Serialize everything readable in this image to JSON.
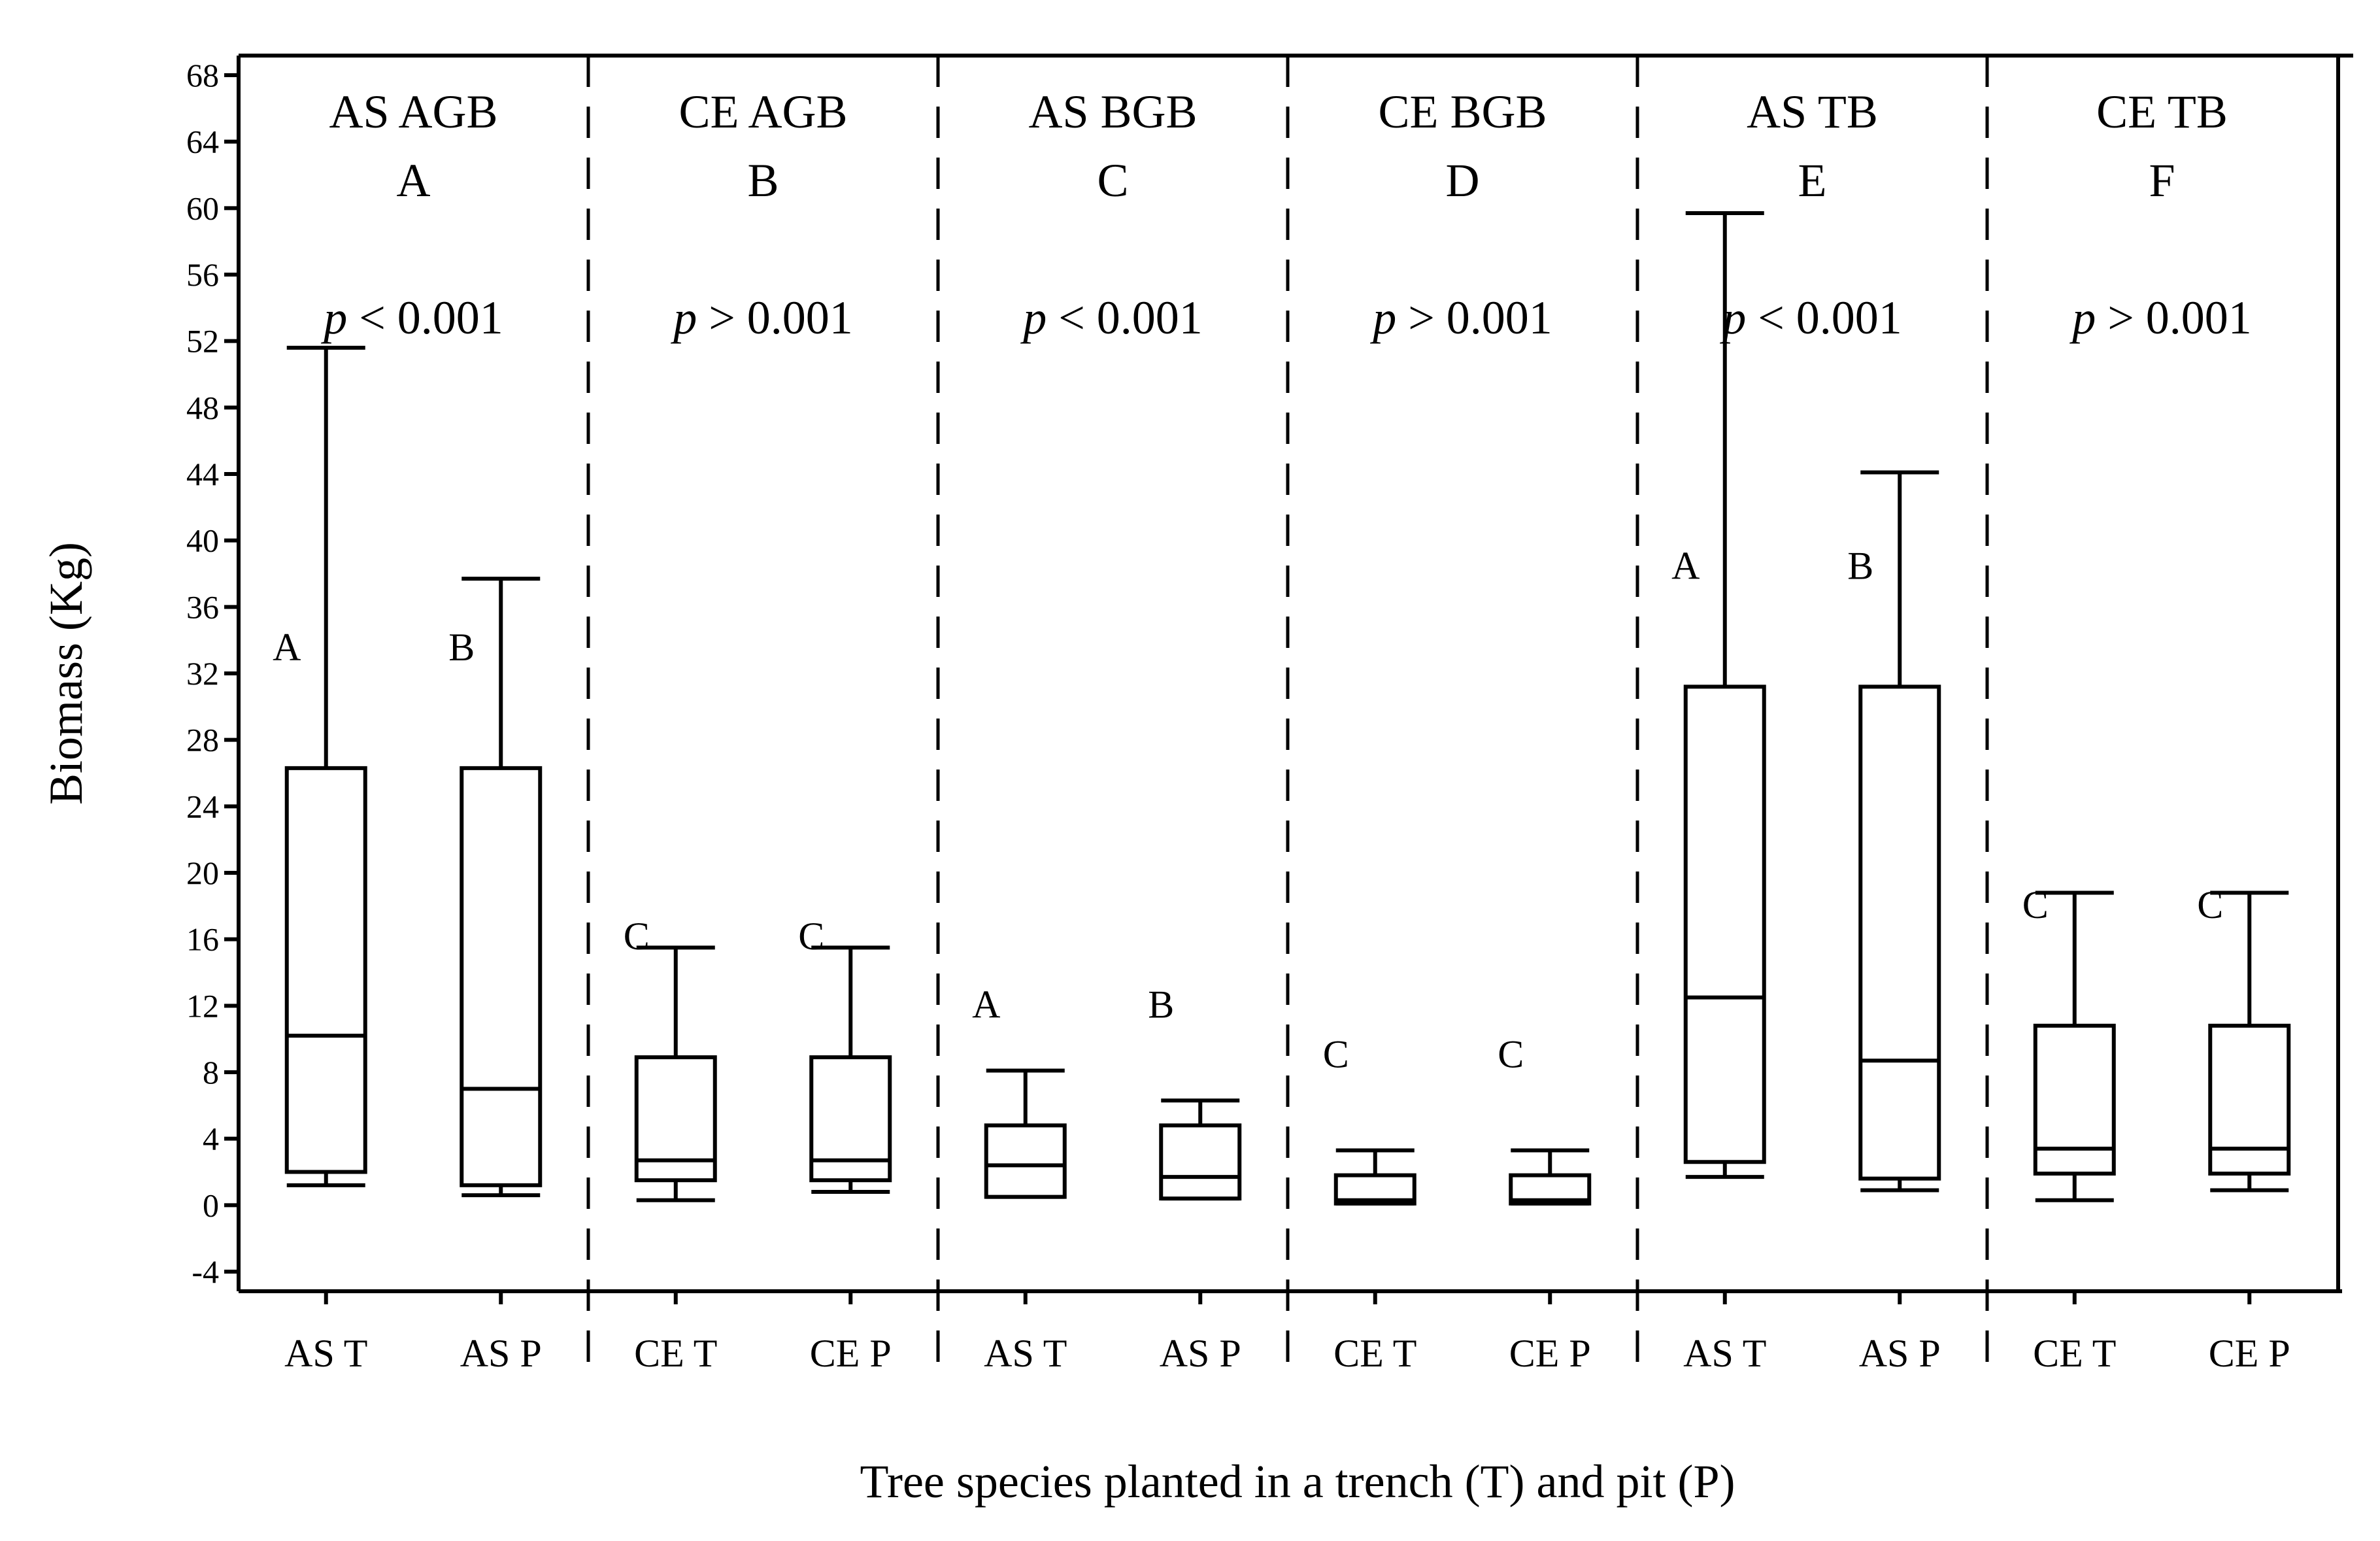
{
  "chart_data": {
    "type": "box",
    "xlabel": "Tree species planted in a trench (T) and pit (P)",
    "ylabel": "Biomass (Kg)",
    "ylim": [
      -4,
      68
    ],
    "yticks": [
      -4,
      0,
      4,
      8,
      12,
      16,
      20,
      24,
      28,
      32,
      36,
      40,
      44,
      48,
      52,
      56,
      60,
      64,
      68
    ],
    "panels": [
      {
        "title": "AS AGB",
        "letter": "A",
        "p_symbol": "p",
        "p_text": " < 0.001",
        "boxes": [
          {
            "label": "AS T",
            "min": 1.2,
            "q1": 2.0,
            "median": 10.2,
            "q3": 26.3,
            "max": 51.6,
            "sig": "A"
          },
          {
            "label": "AS P",
            "min": 0.6,
            "q1": 1.2,
            "median": 7.0,
            "q3": 26.3,
            "max": 37.7,
            "sig": "B"
          }
        ]
      },
      {
        "title": "CE AGB",
        "letter": "B",
        "p_symbol": "p",
        "p_text": " > 0.001",
        "boxes": [
          {
            "label": "CE T",
            "min": 0.3,
            "q1": 1.5,
            "median": 2.7,
            "q3": 8.9,
            "max": 15.5,
            "sig": "C"
          },
          {
            "label": "CE  P",
            "min": 0.8,
            "q1": 1.5,
            "median": 2.7,
            "q3": 8.9,
            "max": 15.5,
            "sig": "C"
          }
        ]
      },
      {
        "title": "AS BGB",
        "letter": "C",
        "p_symbol": "p",
        "p_text": " < 0.001",
        "boxes": [
          {
            "label": "AS T",
            "min": 0.5,
            "q1": 0.5,
            "median": 2.4,
            "q3": 4.8,
            "max": 8.1,
            "sig": "A"
          },
          {
            "label": "AS P",
            "min": 0.4,
            "q1": 0.4,
            "median": 1.7,
            "q3": 4.8,
            "max": 6.3,
            "sig": "B"
          }
        ]
      },
      {
        "title": "CE BGB",
        "letter": "D",
        "p_symbol": "p",
        "p_text": " > 0.001",
        "boxes": [
          {
            "label": "CE T",
            "min": 0.1,
            "q1": 0.1,
            "median": 0.3,
            "q3": 1.8,
            "max": 3.3,
            "sig": "C"
          },
          {
            "label": "CE P",
            "min": 0.1,
            "q1": 0.1,
            "median": 0.3,
            "q3": 1.8,
            "max": 3.3,
            "sig": "C"
          }
        ]
      },
      {
        "title": "AS TB",
        "letter": "E",
        "p_symbol": "p",
        "p_text": " < 0.001",
        "boxes": [
          {
            "label": "AS T",
            "min": 1.7,
            "q1": 2.6,
            "median": 12.5,
            "q3": 31.2,
            "max": 59.7,
            "sig": "A"
          },
          {
            "label": "AS P",
            "min": 0.9,
            "q1": 1.6,
            "median": 8.7,
            "q3": 31.2,
            "max": 44.1,
            "sig": "B"
          }
        ]
      },
      {
        "title": "CE TB",
        "letter": "F",
        "p_symbol": "p",
        "p_text": " > 0.001",
        "boxes": [
          {
            "label": "CE T",
            "min": 0.3,
            "q1": 1.9,
            "median": 3.4,
            "q3": 10.8,
            "max": 18.8,
            "sig": "C"
          },
          {
            "label": "CE P",
            "min": 0.9,
            "q1": 1.9,
            "median": 3.4,
            "q3": 10.8,
            "max": 18.8,
            "sig": "C"
          }
        ]
      }
    ]
  }
}
